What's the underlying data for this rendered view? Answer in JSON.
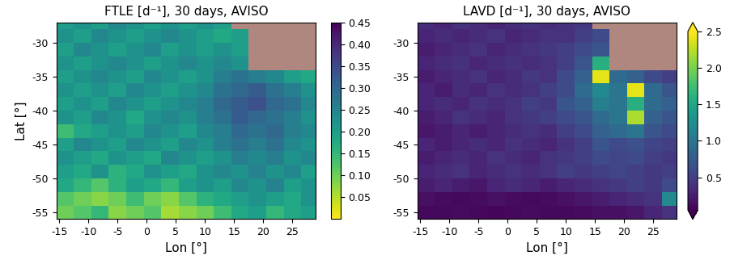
{
  "chart_data": [
    {
      "type": "heatmap",
      "title": "FTLE [d⁻¹], 30 days, AVISO",
      "xlabel": "Lon [°]",
      "ylabel": "Lat [°]",
      "color": "viridis_r",
      "x": [
        -14,
        -11,
        -8,
        -5,
        -2,
        1,
        4,
        7,
        10,
        13,
        16,
        19,
        22,
        25,
        28
      ],
      "y": [
        -55,
        -53,
        -51,
        -49,
        -47,
        -45,
        -43,
        -41,
        -39,
        -37,
        -35,
        -33,
        -31,
        -29,
        -27
      ],
      "xlim": [
        -15.5,
        29
      ],
      "ylim": [
        -56,
        -27
      ],
      "xticks": [
        -15,
        -10,
        -5,
        0,
        5,
        10,
        15,
        20,
        25
      ],
      "yticks": [
        -55,
        -50,
        -45,
        -40,
        -35,
        -30
      ],
      "cells": [
        [
          0.1,
          0.12,
          0.15,
          0.08,
          0.1,
          0.12,
          0.06,
          0.08,
          0.1,
          0.14,
          0.18,
          0.2,
          0.15,
          0.18,
          0.2
        ],
        [
          0.12,
          0.1,
          0.08,
          0.1,
          0.14,
          0.1,
          0.08,
          0.12,
          0.16,
          0.18,
          0.2,
          0.22,
          0.2,
          0.18,
          0.22
        ],
        [
          0.18,
          0.15,
          0.12,
          0.16,
          0.2,
          0.18,
          0.15,
          0.2,
          0.22,
          0.2,
          0.24,
          0.22,
          0.25,
          0.2,
          0.22
        ],
        [
          0.2,
          0.18,
          0.22,
          0.16,
          0.18,
          0.22,
          0.2,
          0.18,
          0.22,
          0.24,
          0.22,
          0.25,
          0.22,
          0.24,
          0.2
        ],
        [
          0.22,
          0.2,
          0.18,
          0.22,
          0.2,
          0.18,
          0.24,
          0.22,
          0.2,
          0.22,
          0.26,
          0.24,
          0.26,
          0.22,
          0.24
        ],
        [
          0.2,
          0.24,
          0.22,
          0.2,
          0.24,
          0.22,
          0.2,
          0.24,
          0.22,
          0.26,
          0.28,
          0.26,
          0.28,
          0.24,
          0.22
        ],
        [
          0.14,
          0.18,
          0.2,
          0.22,
          0.2,
          0.24,
          0.22,
          0.2,
          0.24,
          0.26,
          0.3,
          0.28,
          0.3,
          0.26,
          0.24
        ],
        [
          0.22,
          0.2,
          0.24,
          0.22,
          0.18,
          0.22,
          0.24,
          0.22,
          0.26,
          0.28,
          0.32,
          0.3,
          0.28,
          0.26,
          0.22
        ],
        [
          0.2,
          0.22,
          0.2,
          0.24,
          0.22,
          0.2,
          0.22,
          0.24,
          0.26,
          0.3,
          0.32,
          0.34,
          0.3,
          0.28,
          0.24
        ],
        [
          0.22,
          0.2,
          0.22,
          0.2,
          0.24,
          0.22,
          0.2,
          0.22,
          0.24,
          0.28,
          0.3,
          0.32,
          0.28,
          0.26,
          0.22
        ],
        [
          0.2,
          0.22,
          0.24,
          0.22,
          0.2,
          0.24,
          0.22,
          0.2,
          0.22,
          0.26,
          0.28,
          0.26,
          0.24,
          0.2,
          0.18
        ],
        [
          0.22,
          0.2,
          0.22,
          0.24,
          0.22,
          0.2,
          0.22,
          0.24,
          0.22,
          0.24,
          0.22,
          null,
          null,
          null,
          null
        ],
        [
          0.2,
          0.24,
          0.22,
          0.2,
          0.22,
          0.24,
          0.2,
          0.22,
          0.2,
          0.22,
          0.2,
          null,
          null,
          null,
          null
        ],
        [
          0.22,
          0.2,
          0.24,
          0.22,
          0.2,
          0.22,
          0.24,
          0.22,
          0.2,
          0.18,
          0.2,
          null,
          null,
          null,
          null
        ],
        [
          0.2,
          0.22,
          0.2,
          0.24,
          0.22,
          0.2,
          0.22,
          0.2,
          0.22,
          0.2,
          null,
          null,
          null,
          null,
          null
        ]
      ],
      "colorbar": {
        "range": [
          0.0,
          0.45
        ],
        "ticks": [
          0.05,
          {
            "value": 0.1,
            "label": "0.10"
          },
          0.15,
          {
            "value": 0.2,
            "label": "0.20"
          },
          0.25,
          {
            "value": 0.3,
            "label": "0.30"
          },
          0.35,
          {
            "value": 0.4,
            "label": "0.40"
          },
          0.45
        ]
      }
    },
    {
      "type": "heatmap",
      "title": "LAVD [d⁻¹], 30 days, AVISO",
      "xlabel": "Lon [°]",
      "color": "viridis",
      "x": [
        -14,
        -11,
        -8,
        -5,
        -2,
        1,
        4,
        7,
        10,
        13,
        16,
        19,
        22,
        25,
        28
      ],
      "y": [
        -55,
        -53,
        -51,
        -49,
        -47,
        -45,
        -43,
        -41,
        -39,
        -37,
        -35,
        -33,
        -31,
        -29,
        -27
      ],
      "xlim": [
        -15.5,
        29
      ],
      "ylim": [
        -56,
        -27
      ],
      "xticks": [
        -15,
        -10,
        -5,
        0,
        5,
        10,
        15,
        20,
        25
      ],
      "yticks": [
        -55,
        -50,
        -45,
        -40,
        -35,
        -30
      ],
      "cells": [
        [
          0.1,
          0.1,
          0.12,
          0.1,
          0.08,
          0.1,
          0.12,
          0.1,
          0.1,
          0.12,
          0.15,
          0.15,
          0.2,
          0.3,
          0.4
        ],
        [
          0.15,
          0.12,
          0.1,
          0.12,
          0.15,
          0.12,
          0.1,
          0.12,
          0.15,
          0.2,
          0.25,
          0.3,
          0.35,
          0.4,
          1.2
        ],
        [
          0.25,
          0.3,
          0.25,
          0.2,
          0.3,
          0.35,
          0.3,
          0.25,
          0.3,
          0.35,
          0.4,
          0.45,
          0.5,
          0.45,
          0.6
        ],
        [
          0.3,
          0.35,
          0.4,
          0.3,
          0.35,
          0.4,
          0.35,
          0.4,
          0.5,
          0.45,
          0.5,
          0.55,
          0.5,
          0.45,
          0.5
        ],
        [
          0.25,
          0.3,
          0.35,
          0.3,
          0.4,
          0.35,
          0.3,
          0.4,
          0.45,
          0.5,
          0.6,
          0.55,
          0.6,
          0.5,
          0.45
        ],
        [
          0.3,
          0.25,
          0.3,
          0.35,
          0.3,
          0.4,
          0.35,
          0.3,
          0.4,
          0.5,
          0.7,
          0.6,
          0.65,
          0.55,
          0.5
        ],
        [
          0.2,
          0.25,
          0.3,
          0.25,
          0.3,
          0.35,
          0.4,
          0.35,
          0.5,
          0.6,
          0.8,
          0.9,
          1.0,
          0.7,
          0.6
        ],
        [
          0.25,
          0.3,
          0.4,
          0.35,
          0.3,
          0.4,
          0.45,
          0.5,
          0.6,
          0.7,
          0.9,
          1.0,
          2.2,
          0.8,
          0.7
        ],
        [
          0.3,
          0.35,
          0.3,
          0.4,
          0.35,
          0.4,
          0.5,
          0.45,
          0.7,
          0.8,
          1.1,
          1.0,
          1.6,
          0.9,
          0.8
        ],
        [
          0.3,
          0.25,
          0.35,
          0.3,
          0.4,
          0.35,
          0.4,
          0.5,
          0.6,
          0.9,
          1.2,
          1.0,
          2.4,
          0.9,
          0.7
        ],
        [
          0.25,
          0.3,
          0.35,
          0.4,
          0.3,
          0.35,
          0.45,
          0.4,
          0.6,
          0.8,
          2.4,
          0.9,
          0.8,
          0.6,
          0.5
        ],
        [
          0.3,
          0.35,
          0.4,
          0.3,
          0.35,
          0.4,
          0.35,
          0.4,
          0.5,
          0.7,
          1.6,
          null,
          null,
          null,
          null
        ],
        [
          0.25,
          0.3,
          0.35,
          0.4,
          0.3,
          0.35,
          0.4,
          0.45,
          0.5,
          0.6,
          0.7,
          null,
          null,
          null,
          null
        ],
        [
          0.3,
          0.35,
          0.3,
          0.35,
          0.4,
          0.3,
          0.35,
          0.4,
          0.4,
          0.5,
          0.6,
          null,
          null,
          null,
          null
        ],
        [
          0.35,
          0.3,
          0.4,
          0.35,
          0.3,
          0.35,
          0.4,
          0.35,
          0.4,
          0.45,
          null,
          null,
          null,
          null,
          null
        ]
      ],
      "colorbar": {
        "range": [
          0.05,
          2.5
        ],
        "ticks": [
          0.5,
          1.0,
          1.5,
          2.0,
          2.5
        ]
      }
    }
  ]
}
